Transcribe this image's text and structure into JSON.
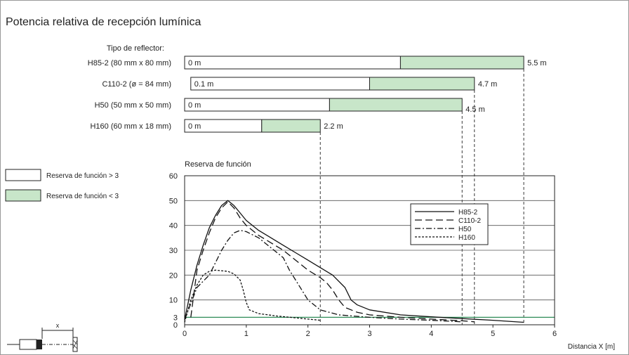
{
  "title": "Potencia relativa de recepción lumínica",
  "reflector_header": "Tipo de reflector:",
  "colors": {
    "reserve_high": "#ffffff",
    "reserve_low": "#c8e6c9",
    "threshold_line": "#2e8b57",
    "ink": "#222222",
    "grid": "#555555"
  },
  "reflectors": [
    {
      "name": "H85-2 (80 mm x 80 mm)",
      "start_label": "0 m",
      "start": 0,
      "threshold": 3.5,
      "end": 5.5,
      "end_label": "5.5 m"
    },
    {
      "name": "C110-2 (ø = 84 mm)",
      "start_label": "0.1 m",
      "start": 0.1,
      "threshold": 3.0,
      "end": 4.7,
      "end_label": "4.7 m"
    },
    {
      "name": "H50 (50 mm x 50 mm)",
      "start_label": "0 m",
      "start": 0,
      "threshold": 2.35,
      "end": 4.5,
      "end_label": "4.5 m"
    },
    {
      "name": "H160 (60 mm x 18 mm)",
      "start_label": "0 m",
      "start": 0,
      "threshold": 1.25,
      "end": 2.2,
      "end_label": "2.2 m"
    }
  ],
  "legend": {
    "high": "Reserva de función > 3",
    "low": "Reserva de función < 3"
  },
  "chart_data": {
    "type": "line",
    "ylabel": "Reserva de función",
    "xlabel": "Distancia X [m]",
    "xlim": [
      0,
      6
    ],
    "ylim": [
      0,
      60
    ],
    "x_ticks": [
      "0",
      "1",
      "2",
      "3",
      "4",
      "5",
      "6"
    ],
    "y_ticks": [
      "0",
      "3",
      "10",
      "20",
      "30",
      "40",
      "50",
      "60"
    ],
    "threshold": 3,
    "grid": true,
    "legend_position": "top-right",
    "series": [
      {
        "name": "H85-2",
        "dash": "solid",
        "points": [
          [
            0,
            2
          ],
          [
            0.1,
            14
          ],
          [
            0.2,
            24
          ],
          [
            0.3,
            32
          ],
          [
            0.4,
            39
          ],
          [
            0.5,
            44
          ],
          [
            0.6,
            48
          ],
          [
            0.7,
            50
          ],
          [
            0.8,
            48
          ],
          [
            0.9,
            45
          ],
          [
            1.0,
            42
          ],
          [
            1.2,
            38
          ],
          [
            1.4,
            35
          ],
          [
            1.6,
            32
          ],
          [
            1.8,
            29
          ],
          [
            2.0,
            26
          ],
          [
            2.2,
            23
          ],
          [
            2.4,
            20
          ],
          [
            2.6,
            15
          ],
          [
            2.7,
            10
          ],
          [
            2.8,
            8
          ],
          [
            3.0,
            6
          ],
          [
            3.5,
            4
          ],
          [
            4.0,
            3.2
          ],
          [
            4.5,
            2.5
          ],
          [
            5.0,
            1.8
          ],
          [
            5.5,
            1
          ]
        ]
      },
      {
        "name": "C110-2",
        "dash": "long",
        "points": [
          [
            0.1,
            3
          ],
          [
            0.2,
            22
          ],
          [
            0.3,
            30
          ],
          [
            0.4,
            37
          ],
          [
            0.5,
            43
          ],
          [
            0.6,
            47
          ],
          [
            0.7,
            49.5
          ],
          [
            0.8,
            47
          ],
          [
            0.9,
            43
          ],
          [
            1.0,
            40
          ],
          [
            1.2,
            36
          ],
          [
            1.4,
            33
          ],
          [
            1.6,
            30
          ],
          [
            1.8,
            26
          ],
          [
            2.0,
            22
          ],
          [
            2.2,
            19
          ],
          [
            2.3,
            17
          ],
          [
            2.4,
            14
          ],
          [
            2.5,
            10
          ],
          [
            2.6,
            7
          ],
          [
            2.8,
            5
          ],
          [
            3.0,
            4
          ],
          [
            3.5,
            3
          ],
          [
            4.0,
            2.3
          ],
          [
            4.5,
            1.6
          ],
          [
            4.7,
            1.2
          ]
        ]
      },
      {
        "name": "H50",
        "dash": "dashdot",
        "points": [
          [
            0,
            2
          ],
          [
            0.2,
            15
          ],
          [
            0.4,
            20
          ],
          [
            0.5,
            25
          ],
          [
            0.6,
            30
          ],
          [
            0.7,
            34
          ],
          [
            0.8,
            37
          ],
          [
            0.9,
            38
          ],
          [
            1.0,
            37.5
          ],
          [
            1.2,
            35
          ],
          [
            1.4,
            31
          ],
          [
            1.6,
            27
          ],
          [
            1.7,
            22
          ],
          [
            1.8,
            18
          ],
          [
            1.9,
            14
          ],
          [
            2.0,
            10
          ],
          [
            2.1,
            8
          ],
          [
            2.2,
            6
          ],
          [
            2.5,
            4
          ],
          [
            3.0,
            3
          ],
          [
            3.5,
            2.3
          ],
          [
            4.0,
            1.8
          ],
          [
            4.5,
            1.2
          ]
        ]
      },
      {
        "name": "H160",
        "dash": "short",
        "points": [
          [
            0,
            1
          ],
          [
            0.1,
            10
          ],
          [
            0.2,
            16
          ],
          [
            0.3,
            20
          ],
          [
            0.4,
            21.5
          ],
          [
            0.5,
            22
          ],
          [
            0.7,
            21.5
          ],
          [
            0.8,
            20.5
          ],
          [
            0.9,
            18
          ],
          [
            0.95,
            14
          ],
          [
            1.0,
            9
          ],
          [
            1.05,
            6
          ],
          [
            1.2,
            4.5
          ],
          [
            1.5,
            3.5
          ],
          [
            1.8,
            2.8
          ],
          [
            2.0,
            2.3
          ],
          [
            2.2,
            1.8
          ]
        ]
      }
    ]
  }
}
